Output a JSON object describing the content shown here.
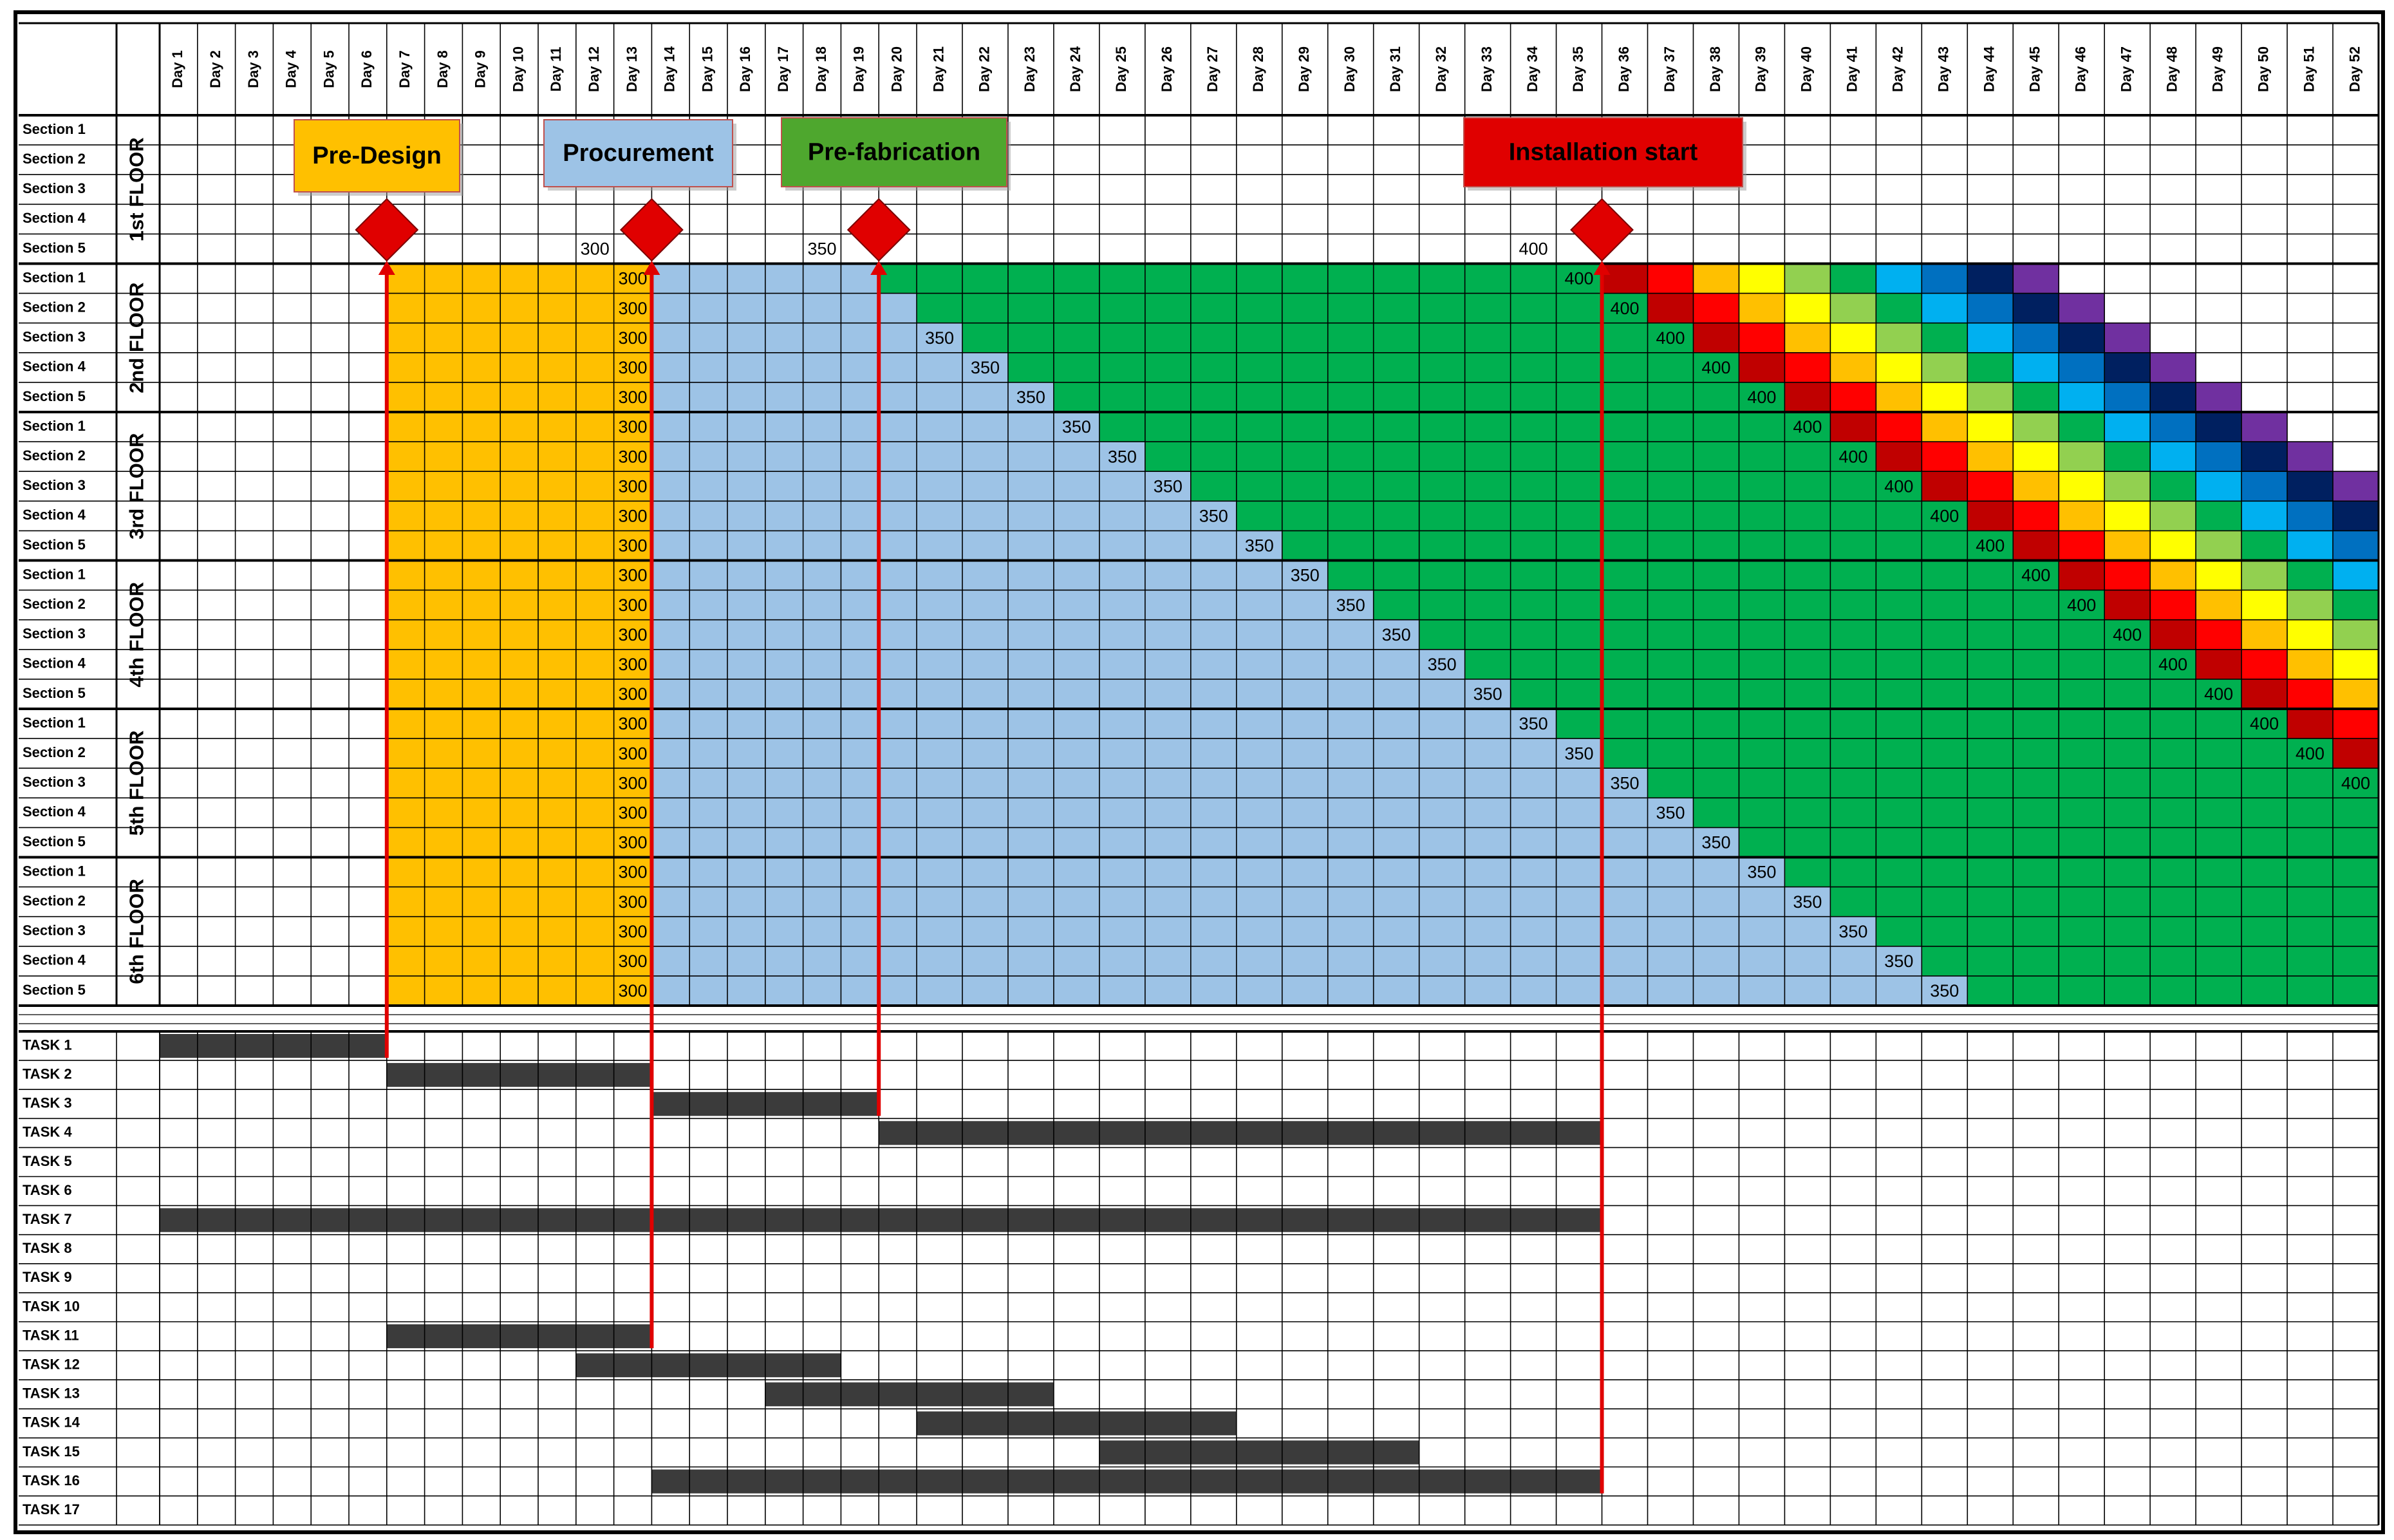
{
  "header": {
    "days": [
      "Day 1",
      "Day 2",
      "Day 3",
      "Day 4",
      "Day 5",
      "Day 6",
      "Day 7",
      "Day 8",
      "Day 9",
      "Day 10",
      "Day 11",
      "Day 12",
      "Day 13",
      "Day 14",
      "Day 15",
      "Day 16",
      "Day 17",
      "Day 18",
      "Day 19",
      "Day 20",
      "Day 21",
      "Day 22",
      "Day 23",
      "Day 24",
      "Day 25",
      "Day 26",
      "Day 27",
      "Day 28",
      "Day 29",
      "Day 30",
      "Day 31",
      "Day 32",
      "Day 33",
      "Day 34",
      "Day 35",
      "Day 36",
      "Day 37",
      "Day 38",
      "Day 39",
      "Day 40",
      "Day 41",
      "Day 42",
      "Day 43",
      "Day 44",
      "Day 45",
      "Day 46",
      "Day 47",
      "Day 48",
      "Day 49",
      "Day 50",
      "Day 51",
      "Day 52"
    ]
  },
  "colors": {
    "design": "#ffc000",
    "procurement": "#9dc3e6",
    "fabrication": "#00b050"
  },
  "installation_colors": [
    "#c00000",
    "#ff0000",
    "#ffc000",
    "#ffff00",
    "#92d050",
    "#00b050",
    "#00b0f0",
    "#0070c0",
    "#002060",
    "#7030a0"
  ],
  "floors": [
    {
      "label": "1st FLOOR",
      "sections": [
        {
          "label": "Section 1"
        },
        {
          "label": "Section 2"
        },
        {
          "label": "Section 3"
        },
        {
          "label": "Section 4"
        },
        {
          "label": "Section 5",
          "labels": [
            {
              "day": 12,
              "value": 300
            },
            {
              "day": 18,
              "value": 350
            },
            {
              "day": 34,
              "value": 400
            }
          ]
        }
      ]
    },
    {
      "label": "2nd FLOOR",
      "sections": [
        {
          "label": "Section 1",
          "design": [
            7,
            13
          ],
          "procurement": [
            14,
            19
          ],
          "fabrication": [
            20,
            35
          ],
          "installation_start": 36,
          "labels": [
            {
              "day": 13,
              "value": 300
            },
            {
              "day": 35,
              "value": 400
            }
          ]
        },
        {
          "label": "Section 2",
          "design": [
            7,
            13
          ],
          "procurement": [
            14,
            20
          ],
          "fabrication": [
            21,
            36
          ],
          "installation_start": 37,
          "labels": [
            {
              "day": 13,
              "value": 300
            },
            {
              "day": 36,
              "value": 400
            }
          ]
        },
        {
          "label": "Section 3",
          "design": [
            7,
            13
          ],
          "procurement": [
            14,
            21
          ],
          "fabrication": [
            22,
            37
          ],
          "installation_start": 38,
          "labels": [
            {
              "day": 13,
              "value": 300
            },
            {
              "day": 21,
              "value": 350
            },
            {
              "day": 37,
              "value": 400
            }
          ]
        },
        {
          "label": "Section 4",
          "design": [
            7,
            13
          ],
          "procurement": [
            14,
            22
          ],
          "fabrication": [
            23,
            38
          ],
          "installation_start": 39,
          "labels": [
            {
              "day": 13,
              "value": 300
            },
            {
              "day": 22,
              "value": 350
            },
            {
              "day": 38,
              "value": 400
            }
          ]
        },
        {
          "label": "Section 5",
          "design": [
            7,
            13
          ],
          "procurement": [
            14,
            23
          ],
          "fabrication": [
            24,
            39
          ],
          "installation_start": 40,
          "labels": [
            {
              "day": 13,
              "value": 300
            },
            {
              "day": 23,
              "value": 350
            },
            {
              "day": 39,
              "value": 400
            }
          ]
        }
      ]
    },
    {
      "label": "3rd FLOOR",
      "sections": [
        {
          "label": "Section 1",
          "design": [
            7,
            13
          ],
          "procurement": [
            14,
            24
          ],
          "fabrication": [
            25,
            40
          ],
          "installation_start": 41,
          "labels": [
            {
              "day": 13,
              "value": 300
            },
            {
              "day": 24,
              "value": 350
            },
            {
              "day": 40,
              "value": 400
            }
          ]
        },
        {
          "label": "Section 2",
          "design": [
            7,
            13
          ],
          "procurement": [
            14,
            25
          ],
          "fabrication": [
            26,
            41
          ],
          "installation_start": 42,
          "labels": [
            {
              "day": 13,
              "value": 300
            },
            {
              "day": 25,
              "value": 350
            },
            {
              "day": 41,
              "value": 400
            }
          ]
        },
        {
          "label": "Section 3",
          "design": [
            7,
            13
          ],
          "procurement": [
            14,
            26
          ],
          "fabrication": [
            27,
            42
          ],
          "installation_start": 43,
          "labels": [
            {
              "day": 13,
              "value": 300
            },
            {
              "day": 26,
              "value": 350
            },
            {
              "day": 42,
              "value": 400
            }
          ]
        },
        {
          "label": "Section 4",
          "design": [
            7,
            13
          ],
          "procurement": [
            14,
            27
          ],
          "fabrication": [
            28,
            43
          ],
          "installation_start": 44,
          "labels": [
            {
              "day": 13,
              "value": 300
            },
            {
              "day": 27,
              "value": 350
            },
            {
              "day": 43,
              "value": 400
            }
          ]
        },
        {
          "label": "Section 5",
          "design": [
            7,
            13
          ],
          "procurement": [
            14,
            28
          ],
          "fabrication": [
            29,
            44
          ],
          "installation_start": 45,
          "labels": [
            {
              "day": 13,
              "value": 300
            },
            {
              "day": 28,
              "value": 350
            },
            {
              "day": 44,
              "value": 400
            }
          ]
        }
      ]
    },
    {
      "label": "4th FLOOR",
      "sections": [
        {
          "label": "Section 1",
          "design": [
            7,
            13
          ],
          "procurement": [
            14,
            29
          ],
          "fabrication": [
            30,
            45
          ],
          "installation_start": 46,
          "labels": [
            {
              "day": 13,
              "value": 300
            },
            {
              "day": 29,
              "value": 350
            },
            {
              "day": 45,
              "value": 400
            }
          ]
        },
        {
          "label": "Section 2",
          "design": [
            7,
            13
          ],
          "procurement": [
            14,
            30
          ],
          "fabrication": [
            31,
            46
          ],
          "installation_start": 47,
          "labels": [
            {
              "day": 13,
              "value": 300
            },
            {
              "day": 30,
              "value": 350
            },
            {
              "day": 46,
              "value": 400
            }
          ]
        },
        {
          "label": "Section 3",
          "design": [
            7,
            13
          ],
          "procurement": [
            14,
            31
          ],
          "fabrication": [
            32,
            47
          ],
          "installation_start": 48,
          "labels": [
            {
              "day": 13,
              "value": 300
            },
            {
              "day": 31,
              "value": 350
            },
            {
              "day": 47,
              "value": 400
            }
          ]
        },
        {
          "label": "Section 4",
          "design": [
            7,
            13
          ],
          "procurement": [
            14,
            32
          ],
          "fabrication": [
            33,
            48
          ],
          "installation_start": 49,
          "labels": [
            {
              "day": 13,
              "value": 300
            },
            {
              "day": 32,
              "value": 350
            },
            {
              "day": 48,
              "value": 400
            }
          ]
        },
        {
          "label": "Section 5",
          "design": [
            7,
            13
          ],
          "procurement": [
            14,
            33
          ],
          "fabrication": [
            34,
            49
          ],
          "installation_start": 50,
          "labels": [
            {
              "day": 13,
              "value": 300
            },
            {
              "day": 33,
              "value": 350
            },
            {
              "day": 49,
              "value": 400
            }
          ]
        }
      ]
    },
    {
      "label": "5th FLOOR",
      "sections": [
        {
          "label": "Section 1",
          "design": [
            7,
            13
          ],
          "procurement": [
            14,
            34
          ],
          "fabrication": [
            35,
            50
          ],
          "installation_start": 51,
          "labels": [
            {
              "day": 13,
              "value": 300
            },
            {
              "day": 34,
              "value": 350
            },
            {
              "day": 50,
              "value": 400
            }
          ]
        },
        {
          "label": "Section 2",
          "design": [
            7,
            13
          ],
          "procurement": [
            14,
            35
          ],
          "fabrication": [
            36,
            51
          ],
          "installation_start": 52,
          "labels": [
            {
              "day": 13,
              "value": 300
            },
            {
              "day": 35,
              "value": 350
            },
            {
              "day": 51,
              "value": 400
            }
          ]
        },
        {
          "label": "Section 3",
          "design": [
            7,
            13
          ],
          "procurement": [
            14,
            36
          ],
          "fabrication": [
            37,
            52
          ],
          "labels": [
            {
              "day": 13,
              "value": 300
            },
            {
              "day": 36,
              "value": 350
            },
            {
              "day": 52,
              "value": 400
            }
          ]
        },
        {
          "label": "Section 4",
          "design": [
            7,
            13
          ],
          "procurement": [
            14,
            37
          ],
          "fabrication": [
            38,
            52
          ],
          "labels": [
            {
              "day": 13,
              "value": 300
            },
            {
              "day": 37,
              "value": 350
            }
          ]
        },
        {
          "label": "Section 5",
          "design": [
            7,
            13
          ],
          "procurement": [
            14,
            38
          ],
          "fabrication": [
            39,
            52
          ],
          "labels": [
            {
              "day": 13,
              "value": 300
            },
            {
              "day": 38,
              "value": 350
            }
          ]
        }
      ]
    },
    {
      "label": "6th FLOOR",
      "sections": [
        {
          "label": "Section 1",
          "design": [
            7,
            13
          ],
          "procurement": [
            14,
            39
          ],
          "fabrication": [
            40,
            52
          ],
          "labels": [
            {
              "day": 13,
              "value": 300
            },
            {
              "day": 39,
              "value": 350
            }
          ]
        },
        {
          "label": "Section 2",
          "design": [
            7,
            13
          ],
          "procurement": [
            14,
            40
          ],
          "fabrication": [
            41,
            52
          ],
          "labels": [
            {
              "day": 13,
              "value": 300
            },
            {
              "day": 40,
              "value": 350
            }
          ]
        },
        {
          "label": "Section 3",
          "design": [
            7,
            13
          ],
          "procurement": [
            14,
            41
          ],
          "fabrication": [
            42,
            52
          ],
          "labels": [
            {
              "day": 13,
              "value": 300
            },
            {
              "day": 41,
              "value": 350
            }
          ]
        },
        {
          "label": "Section 4",
          "design": [
            7,
            13
          ],
          "procurement": [
            14,
            42
          ],
          "fabrication": [
            43,
            52
          ],
          "labels": [
            {
              "day": 13,
              "value": 300
            },
            {
              "day": 42,
              "value": 350
            }
          ]
        },
        {
          "label": "Section 5",
          "design": [
            7,
            13
          ],
          "procurement": [
            14,
            43
          ],
          "fabrication": [
            44,
            52
          ],
          "labels": [
            {
              "day": 13,
              "value": 300
            },
            {
              "day": 43,
              "value": 350
            }
          ]
        }
      ]
    }
  ],
  "milestones": [
    {
      "label": "Pre-Design",
      "day": 7,
      "color": "#ffc000",
      "text_color": "#222222"
    },
    {
      "label": "Procurement",
      "day": 14,
      "color": "#9dc3e6",
      "text_color": "#1f2a44"
    },
    {
      "label": "Pre-fabrication",
      "day": 20,
      "color": "#4ea72e",
      "text_color": "#ffffff"
    },
    {
      "label": "Installation start",
      "day": 36,
      "color": "#e00000",
      "text_color": "#ffffff"
    }
  ],
  "tasks": [
    {
      "label": "TASK 1",
      "days": [
        1,
        6
      ]
    },
    {
      "label": "TASK 2",
      "days": [
        7,
        13
      ]
    },
    {
      "label": "TASK 3",
      "days": [
        14,
        19
      ]
    },
    {
      "label": "TASK 4",
      "days": [
        20,
        35
      ]
    },
    {
      "label": "TASK 5"
    },
    {
      "label": "TASK 6"
    },
    {
      "label": "TASK 7",
      "days": [
        1,
        35
      ]
    },
    {
      "label": "TASK 8"
    },
    {
      "label": "TASK 9"
    },
    {
      "label": "TASK 10"
    },
    {
      "label": "TASK 11",
      "days": [
        7,
        13
      ]
    },
    {
      "label": "TASK 12",
      "days": [
        12,
        18
      ]
    },
    {
      "label": "TASK 13",
      "days": [
        17,
        23
      ]
    },
    {
      "label": "TASK 14",
      "days": [
        21,
        27
      ]
    },
    {
      "label": "TASK 15",
      "days": [
        25,
        31
      ]
    },
    {
      "label": "TASK 16",
      "days": [
        14,
        35
      ]
    },
    {
      "label": "TASK 17"
    }
  ]
}
